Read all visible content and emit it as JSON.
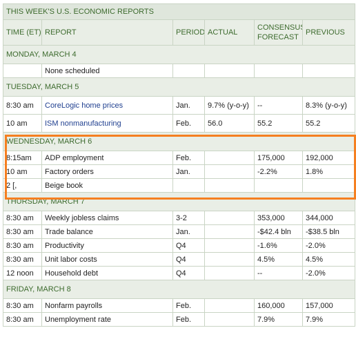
{
  "title": "THIS WEEK'S U.S. ECONOMIC REPORTS",
  "headers": {
    "time": "TIME (ET)",
    "report": "REPORT",
    "period": "PERIOD",
    "actual": "ACTUAL",
    "consensus_line1": "CONSENSUS",
    "consensus_line2": "FORECAST",
    "previous": "PREVIOUS"
  },
  "days": [
    {
      "label": "MONDAY, MARCH 4",
      "rows": [
        {
          "time": "",
          "report": "None scheduled",
          "period": "",
          "actual": "",
          "consensus": "",
          "previous": ""
        }
      ]
    },
    {
      "label": "TUESDAY, MARCH 5",
      "rows": [
        {
          "time": "8:30 am",
          "report": "CoreLogic home prices",
          "period": "Jan.",
          "actual": "9.7% (y-o-y)",
          "consensus": "--",
          "previous": "8.3% (y-o-y)"
        },
        {
          "time": "10 am",
          "report": "ISM nonmanufacturing",
          "period": "Feb.",
          "actual": "56.0",
          "consensus": "55.2",
          "previous": "55.2"
        }
      ]
    },
    {
      "label": "WEDNESDAY, MARCH 6",
      "rows": [
        {
          "time": "8:15am",
          "report": "ADP employment",
          "period": "Feb.",
          "actual": "",
          "consensus": "175,000",
          "previous": "192,000"
        },
        {
          "time": "10 am",
          "report": "Factory orders",
          "period": "Jan.",
          "actual": "",
          "consensus": "-2.2%",
          "previous": "1.8%"
        },
        {
          "time": "2 [,",
          "report": "Beige book",
          "period": "",
          "actual": "",
          "consensus": "",
          "previous": ""
        }
      ]
    },
    {
      "label": "THURSDAY, MARCH 7",
      "rows": [
        {
          "time": "8:30 am",
          "report": "Weekly jobless claims",
          "period": "3-2",
          "actual": "",
          "consensus": "353,000",
          "previous": "344,000"
        },
        {
          "time": "8:30 am",
          "report": "Trade balance",
          "period": "Jan.",
          "actual": "",
          "consensus": "-$42.4 bln",
          "previous": "-$38.5 bln"
        },
        {
          "time": "8:30 am",
          "report": "Productivity",
          "period": "Q4",
          "actual": "",
          "consensus": "-1.6%",
          "previous": "-2.0%"
        },
        {
          "time": "8:30 am",
          "report": "Unit labor costs",
          "period": "Q4",
          "actual": "",
          "consensus": "4.5%",
          "previous": "4.5%"
        },
        {
          "time": "12 noon",
          "report": "Household debt",
          "period": "Q4",
          "actual": "",
          "consensus": "--",
          "previous": "-2.0%"
        }
      ]
    },
    {
      "label": "FRIDAY, MARCH 8",
      "rows": [
        {
          "time": "8:30 am",
          "report": "Nonfarm payrolls",
          "period": "Feb.",
          "actual": "",
          "consensus": "160,000",
          "previous": "157,000"
        },
        {
          "time": "8:30 am",
          "report": "Unemployment rate",
          "period": "Feb.",
          "actual": "",
          "consensus": "7.9%",
          "previous": "7.9%"
        }
      ]
    }
  ],
  "colors": {
    "header_text": "#3d6b2e",
    "link": "#1f3f8f",
    "highlight": "#f57f20"
  }
}
